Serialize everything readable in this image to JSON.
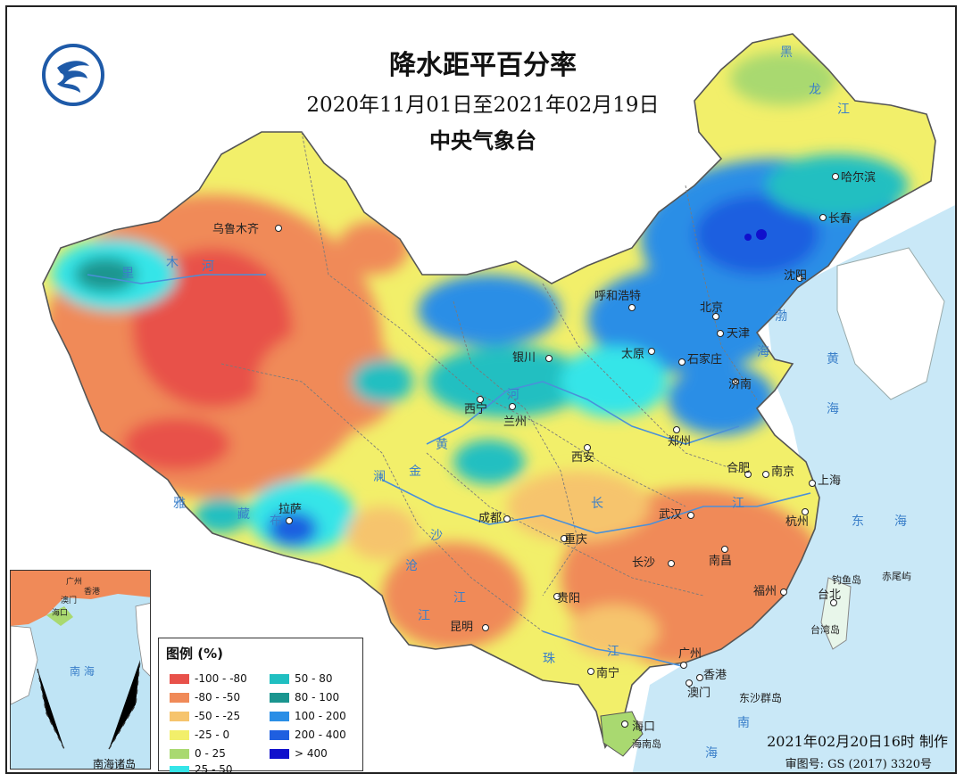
{
  "header": {
    "title": "降水距平百分率",
    "date_range": "2020年11月01日至2021年02月19日",
    "agency": "中央气象台"
  },
  "legend": {
    "title": "图例 (%)",
    "items": [
      {
        "label": "-100 - -80",
        "color": "#e8514a"
      },
      {
        "label": "-80 - -50",
        "color": "#f08a58"
      },
      {
        "label": "-50 - -25",
        "color": "#f6c46d"
      },
      {
        "label": "-25 - 0",
        "color": "#f2ef6a"
      },
      {
        "label": "0 - 25",
        "color": "#a9d970"
      },
      {
        "label": "25 - 50",
        "color": "#35e5e8"
      },
      {
        "label": "50 - 80",
        "color": "#20bfc1"
      },
      {
        "label": "80 - 100",
        "color": "#1a958f"
      },
      {
        "label": "100 - 200",
        "color": "#2a8ee6"
      },
      {
        "label": "200 - 400",
        "color": "#1f5fe0"
      },
      {
        "label": "> 400",
        "color": "#1010cc"
      }
    ]
  },
  "cities": [
    {
      "name": "乌鲁木齐"
    },
    {
      "name": "哈尔滨"
    },
    {
      "name": "长春"
    },
    {
      "name": "沈阳"
    },
    {
      "name": "呼和浩特"
    },
    {
      "name": "北京"
    },
    {
      "name": "天津"
    },
    {
      "name": "银川"
    },
    {
      "name": "太原"
    },
    {
      "name": "石家庄"
    },
    {
      "name": "济南"
    },
    {
      "name": "西宁"
    },
    {
      "name": "兰州"
    },
    {
      "name": "郑州"
    },
    {
      "name": "西安"
    },
    {
      "name": "合肥"
    },
    {
      "name": "南京"
    },
    {
      "name": "上海"
    },
    {
      "name": "拉萨"
    },
    {
      "name": "成都"
    },
    {
      "name": "武汉"
    },
    {
      "name": "杭州"
    },
    {
      "name": "重庆"
    },
    {
      "name": "长沙"
    },
    {
      "name": "南昌"
    },
    {
      "name": "福州"
    },
    {
      "name": "贵阳"
    },
    {
      "name": "台北"
    },
    {
      "name": "昆明"
    },
    {
      "name": "广州"
    },
    {
      "name": "南宁"
    },
    {
      "name": "香港"
    },
    {
      "name": "澳门"
    },
    {
      "name": "海口"
    }
  ],
  "places": [
    "钓鱼岛",
    "赤尾屿",
    "台湾岛",
    "东沙群岛",
    "海南岛"
  ],
  "water_labels": [
    "黑",
    "龙",
    "江",
    "里",
    "木",
    "河",
    "黄",
    "河",
    "渤",
    "海",
    "黄",
    "海",
    "东",
    "海",
    "南",
    "海",
    "长",
    "江",
    "珠",
    "江",
    "雅",
    "藏",
    "布",
    "金",
    "沙",
    "江",
    "澜",
    "沧",
    "江"
  ],
  "inset": {
    "label": "南海诸岛",
    "cities": [
      "广州",
      "香港",
      "澳门",
      "海口"
    ],
    "sea": "南 海"
  },
  "footer": {
    "made": "2021年02月20日16时 制作",
    "map_no": "审图号: GS (2017) 3320号"
  },
  "colors": {
    "sea": "#bfe4f5",
    "border": "#555555",
    "river": "#4a90d9"
  }
}
